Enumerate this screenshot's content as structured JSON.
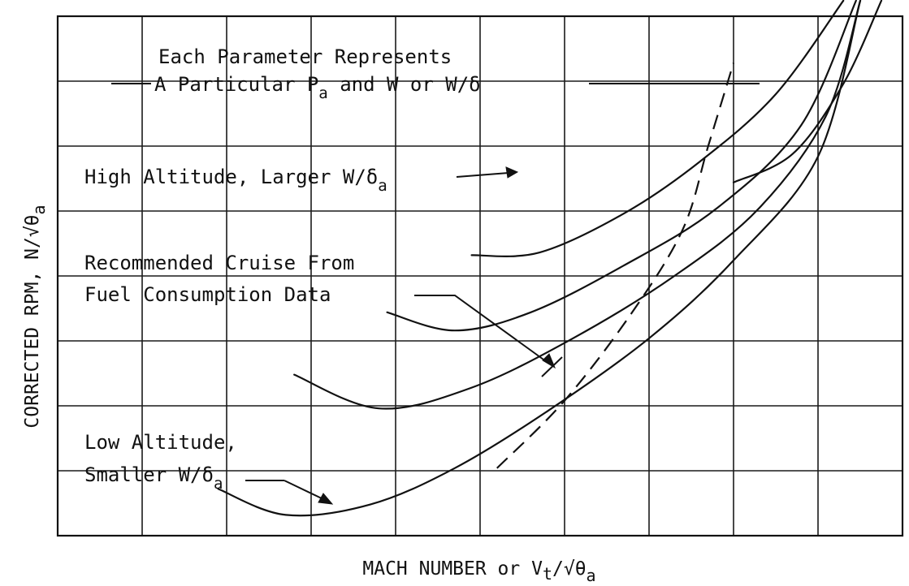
{
  "chart_data": {
    "type": "line",
    "title": "",
    "xlabel_parts": [
      "MACH NUMBER or V",
      "t",
      "/√θ",
      "a"
    ],
    "ylabel_parts": [
      "CORRECTED RPM,   N/√θ",
      "a"
    ],
    "grid": true,
    "x_ticks": [],
    "y_ticks": [],
    "annotations": {
      "parameter_note_line1": "Each Parameter Represents",
      "parameter_note_line2": [
        "A Particular P",
        "a",
        " and W or W/δ"
      ],
      "high_altitude": [
        "High Altitude, Larger W/δ",
        "a"
      ],
      "recommended_line1": "Recommended Cruise From",
      "recommended_line2": "Fuel Consumption Data",
      "low_altitude_line1": "Low Altitude,",
      "low_altitude_line2": [
        "Smaller W/δ",
        "a"
      ]
    },
    "series": [
      {
        "points": [
          [
            0.8,
            0.68
          ],
          [
            0.87,
            0.735
          ],
          [
            0.93,
            0.87
          ],
          [
            0.975,
            1.03
          ]
        ]
      },
      {
        "points": [
          [
            0.49,
            0.54
          ],
          [
            0.57,
            0.545
          ],
          [
            0.67,
            0.62
          ],
          [
            0.76,
            0.72
          ],
          [
            0.85,
            0.85
          ],
          [
            0.93,
            1.03
          ]
        ]
      },
      {
        "points": [
          [
            0.39,
            0.43
          ],
          [
            0.47,
            0.395
          ],
          [
            0.56,
            0.43
          ],
          [
            0.67,
            0.52
          ],
          [
            0.78,
            0.63
          ],
          [
            0.88,
            0.79
          ],
          [
            0.945,
            1.03
          ]
        ]
      },
      {
        "points": [
          [
            0.28,
            0.31
          ],
          [
            0.38,
            0.245
          ],
          [
            0.49,
            0.285
          ],
          [
            0.61,
            0.38
          ],
          [
            0.73,
            0.5
          ],
          [
            0.83,
            0.63
          ],
          [
            0.91,
            0.81
          ],
          [
            0.95,
            1.03
          ]
        ]
      },
      {
        "points": [
          [
            0.19,
            0.09
          ],
          [
            0.27,
            0.04
          ],
          [
            0.37,
            0.06
          ],
          [
            0.47,
            0.13
          ],
          [
            0.58,
            0.24
          ],
          [
            0.7,
            0.38
          ],
          [
            0.8,
            0.53
          ],
          [
            0.9,
            0.73
          ],
          [
            0.95,
            1.03
          ]
        ]
      }
    ],
    "dashed_curve": {
      "name": "Recommended Cruise",
      "points": [
        [
          0.52,
          0.13
        ],
        [
          0.6,
          0.26
        ],
        [
          0.68,
          0.43
        ],
        [
          0.74,
          0.59
        ],
        [
          0.77,
          0.75
        ],
        [
          0.8,
          0.91
        ]
      ]
    }
  },
  "colors": {
    "ink": "#111111",
    "background": "#ffffff"
  }
}
